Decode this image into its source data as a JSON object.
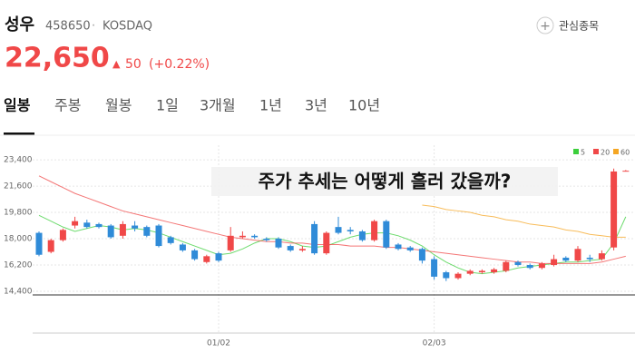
{
  "header": {
    "name": "성우",
    "code": "458650",
    "separator": "·",
    "market": "KOSDAQ",
    "watch_button": "관심종목",
    "price": "22,650",
    "change_arrow": "▲",
    "change": 50,
    "change_rate": "(+0.22%)"
  },
  "tabs": [
    "일봉",
    "주봉",
    "월봉",
    "1일",
    "3개월",
    "1년",
    "3년",
    "10년"
  ],
  "caption": "주가 추세는 어떻게 흘러 갔을까?",
  "chart_data": {
    "type": "candlestick",
    "categories": [
      null,
      null,
      null,
      null,
      null,
      null,
      null,
      null,
      null,
      null,
      null,
      null,
      null,
      null,
      null,
      "01/02",
      null,
      null,
      null,
      null,
      null,
      null,
      null,
      null,
      null,
      null,
      null,
      null,
      null,
      null,
      null,
      null,
      null,
      "02/03",
      null,
      null,
      null,
      null,
      null,
      null,
      null,
      null,
      null,
      null,
      null,
      null,
      null,
      null,
      null,
      null
    ],
    "open": [
      18400,
      17100,
      17900,
      18900,
      19100,
      19000,
      18900,
      18200,
      18900,
      18800,
      18900,
      18100,
      17600,
      17200,
      16400,
      17000,
      17200,
      18100,
      18200,
      18000,
      18000,
      17500,
      17200,
      19000,
      17000,
      18800,
      18600,
      18500,
      17900,
      19200,
      17600,
      17400,
      17300,
      16600,
      15700,
      15300,
      15600,
      15700,
      15700,
      15800,
      16400,
      16200,
      16000,
      16200,
      16700,
      16500,
      16700,
      16600,
      17400,
      22600
    ],
    "high": [
      18500,
      18000,
      18700,
      19500,
      19300,
      19100,
      19000,
      19200,
      19200,
      18900,
      19000,
      18200,
      17700,
      17300,
      16900,
      17100,
      18800,
      18500,
      18300,
      18100,
      18100,
      17600,
      17500,
      19200,
      18500,
      19500,
      18800,
      18600,
      19300,
      19300,
      17700,
      17500,
      17400,
      16800,
      15800,
      15700,
      15900,
      15900,
      16000,
      16500,
      16500,
      16300,
      16400,
      16900,
      16800,
      17500,
      16900,
      17200,
      22800,
      22700
    ],
    "low": [
      16800,
      17000,
      17800,
      18700,
      18700,
      18700,
      18000,
      18000,
      18500,
      18100,
      17400,
      17600,
      17100,
      16500,
      16300,
      16400,
      17100,
      18000,
      18000,
      17800,
      17300,
      17100,
      17100,
      16900,
      16900,
      18300,
      18300,
      17800,
      17800,
      17300,
      17200,
      17100,
      16300,
      15200,
      15100,
      15200,
      15500,
      15600,
      15600,
      15700,
      16100,
      15900,
      15900,
      16100,
      16400,
      16400,
      16400,
      16500,
      17200,
      22600
    ],
    "close": [
      16900,
      17900,
      18600,
      19200,
      18800,
      18800,
      18100,
      19000,
      18700,
      18200,
      17500,
      17700,
      17200,
      16600,
      16800,
      16500,
      18200,
      18200,
      18100,
      17900,
      17400,
      17200,
      17300,
      17000,
      18400,
      18400,
      18500,
      17900,
      19200,
      17400,
      17300,
      17200,
      16500,
      15400,
      15300,
      15600,
      15800,
      15800,
      15900,
      16400,
      16200,
      16000,
      16300,
      16600,
      16500,
      17300,
      16600,
      17000,
      22600,
      22650
    ],
    "up_color": "#f04848",
    "down_color": "#2f8bd8",
    "series": [
      {
        "name": "5",
        "color": "#3ccf3c",
        "values": [
          19600,
          19200,
          18800,
          18500,
          18700,
          18900,
          18800,
          18600,
          18700,
          18600,
          18400,
          18100,
          17800,
          17500,
          17200,
          16900,
          17000,
          17300,
          17700,
          18000,
          18000,
          17800,
          17500,
          17400,
          17500,
          17800,
          18100,
          18300,
          18400,
          18400,
          18200,
          17900,
          17500,
          16900,
          16400,
          16000,
          15700,
          15600,
          15700,
          15800,
          16000,
          16100,
          16200,
          16300,
          16400,
          16400,
          16500,
          16600,
          17700,
          19500
        ]
      },
      {
        "name": "20",
        "color": "#f04848",
        "values": [
          22300,
          21900,
          21500,
          21100,
          20800,
          20500,
          20200,
          19900,
          19700,
          19500,
          19300,
          19100,
          18900,
          18700,
          18500,
          18300,
          18100,
          18000,
          17900,
          17800,
          17800,
          17700,
          17700,
          17600,
          17600,
          17600,
          17500,
          17500,
          17500,
          17400,
          17400,
          17300,
          17200,
          17100,
          17000,
          16900,
          16800,
          16700,
          16600,
          16500,
          16400,
          16400,
          16300,
          16300,
          16300,
          16300,
          16300,
          16400,
          16600,
          16800
        ]
      },
      {
        "name": "60",
        "color": "#f5a623",
        "values": [
          null,
          null,
          null,
          null,
          null,
          null,
          null,
          null,
          null,
          null,
          null,
          null,
          null,
          null,
          null,
          null,
          null,
          null,
          null,
          null,
          null,
          null,
          null,
          null,
          null,
          null,
          null,
          null,
          null,
          null,
          null,
          null,
          20300,
          20200,
          20000,
          19900,
          19800,
          19600,
          19500,
          19300,
          19200,
          19000,
          18900,
          18800,
          18600,
          18500,
          18300,
          18200,
          18100,
          18100
        ]
      }
    ],
    "ylim": [
      14150,
      24400
    ],
    "yticks": [
      {
        "value": 14400,
        "label": "14,400"
      },
      {
        "value": 16200,
        "label": "16,200"
      },
      {
        "value": 18000,
        "label": "18,000"
      },
      {
        "value": 19800,
        "label": "19,800"
      },
      {
        "value": 21600,
        "label": "21,600"
      },
      {
        "value": 23400,
        "label": "23,400"
      }
    ],
    "grid": true
  }
}
